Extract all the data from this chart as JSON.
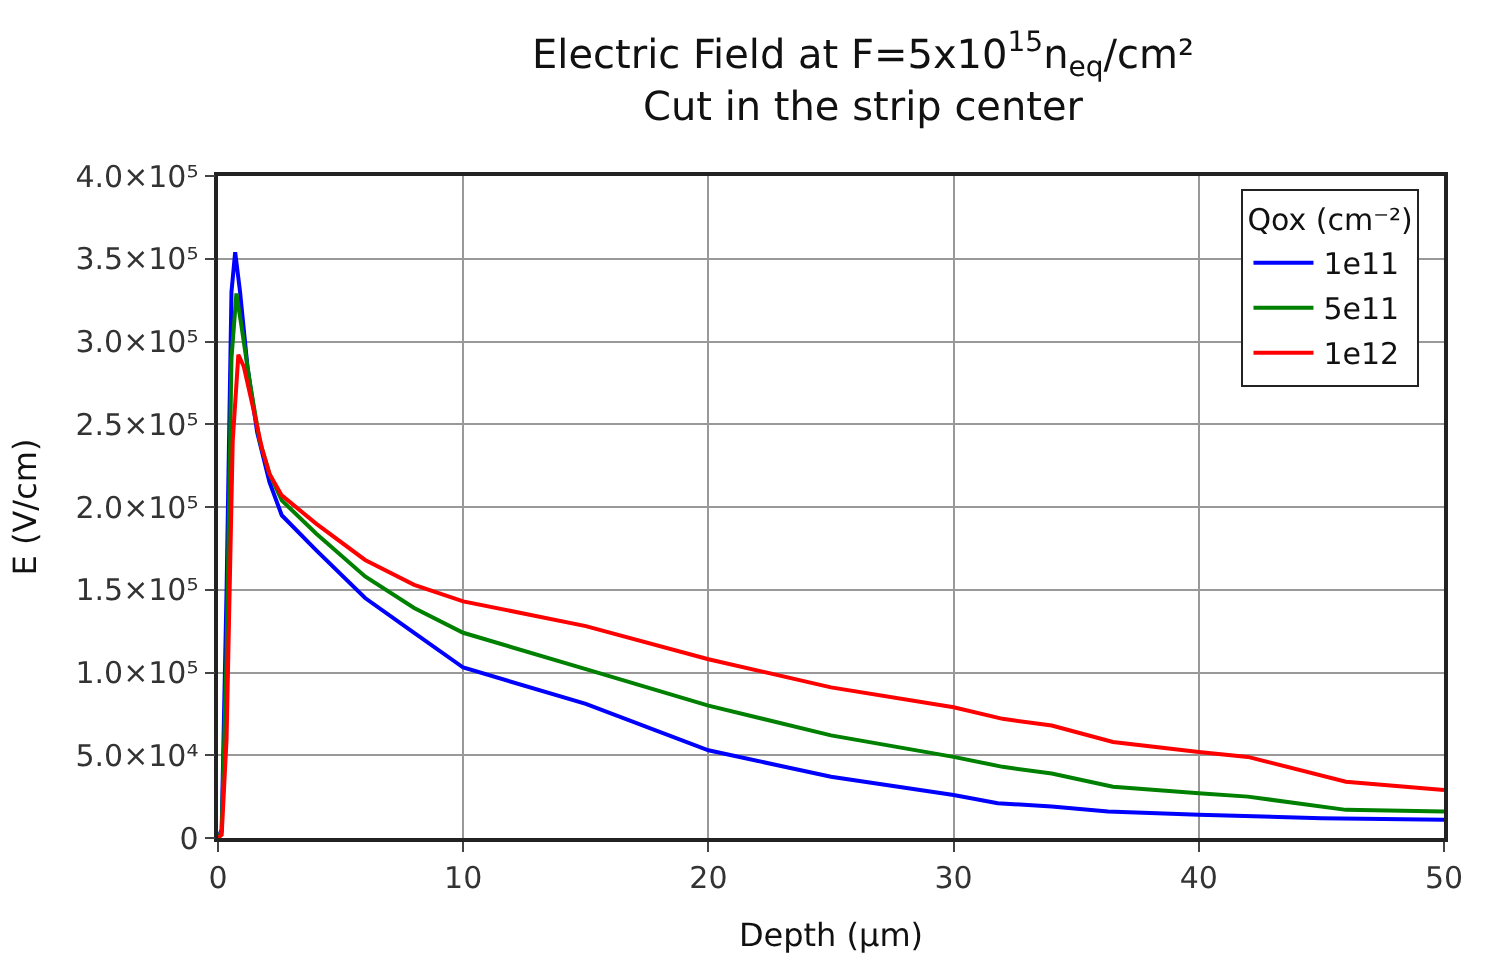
{
  "chart_data": {
    "type": "line",
    "title": "Electric Field at F=5x10$^{15}$n$_{eq}$/cm²\nCut in the strip center",
    "xlabel": "Depth (μm)",
    "ylabel": "E (V/cm)",
    "legend_title": "Qox (cm⁻²)",
    "xlim": [
      0,
      50
    ],
    "xticks": [
      0,
      10,
      20,
      30,
      40,
      50
    ],
    "ylim": [
      0,
      400000
    ],
    "yticks": [
      0,
      {
        "value": 50000,
        "label": "5.0×10⁴"
      },
      {
        "value": 100000,
        "label": "1.0×10⁵"
      },
      {
        "value": 150000,
        "label": "1.5×10⁵"
      },
      {
        "value": 200000,
        "label": "2.0×10⁵"
      },
      {
        "value": 250000,
        "label": "2.5×10⁵"
      },
      {
        "value": 300000,
        "label": "3.0×10⁵"
      },
      {
        "value": 350000,
        "label": "3.5×10⁵"
      },
      {
        "value": 400000,
        "label": "4.0×10⁵"
      }
    ],
    "grid": true,
    "legend": "top right",
    "marker": "none",
    "line_style": "solid",
    "series": [
      {
        "name": "1e11",
        "color": "#0000ff",
        "x": [
          0,
          0.15,
          0.35,
          0.55,
          0.7,
          0.9,
          1.2,
          1.6,
          2.1,
          2.6,
          4,
          6,
          8,
          10,
          15,
          20,
          25,
          30,
          31.8,
          34,
          36.3,
          40,
          45,
          50
        ],
        "values": [
          0,
          5000,
          150000,
          330000,
          354000,
          330000,
          285000,
          245000,
          215000,
          195000,
          174000,
          145000,
          124000,
          103000,
          81000,
          53000,
          37000,
          26000,
          21000,
          19000,
          16000,
          14000,
          12000,
          11000
        ]
      },
      {
        "name": "5e11",
        "color": "#008000",
        "x": [
          0,
          0.15,
          0.35,
          0.55,
          0.75,
          0.95,
          1.3,
          1.7,
          2.1,
          2.6,
          4,
          6,
          8,
          10,
          15,
          20,
          25,
          30,
          32,
          34,
          36.5,
          40,
          42,
          46,
          50
        ],
        "values": [
          0,
          4000,
          110000,
          290000,
          329000,
          310000,
          275000,
          240000,
          220000,
          204000,
          184000,
          158000,
          139000,
          124000,
          102000,
          80000,
          62000,
          49000,
          43000,
          39000,
          31000,
          27000,
          25000,
          17000,
          16000
        ]
      },
      {
        "name": "1e12",
        "color": "#ff0000",
        "x": [
          0,
          0.15,
          0.35,
          0.6,
          0.83,
          1.05,
          1.4,
          1.8,
          2.1,
          2.6,
          4,
          6,
          8,
          10,
          15,
          20,
          25,
          30,
          32,
          34,
          36.5,
          40,
          42,
          46,
          50
        ],
        "values": [
          0,
          2000,
          60000,
          240000,
          292000,
          285000,
          262000,
          235000,
          220000,
          207000,
          190000,
          168000,
          153000,
          143000,
          128000,
          108000,
          91000,
          79000,
          72000,
          68000,
          58000,
          52000,
          49000,
          34000,
          29000
        ]
      }
    ]
  }
}
